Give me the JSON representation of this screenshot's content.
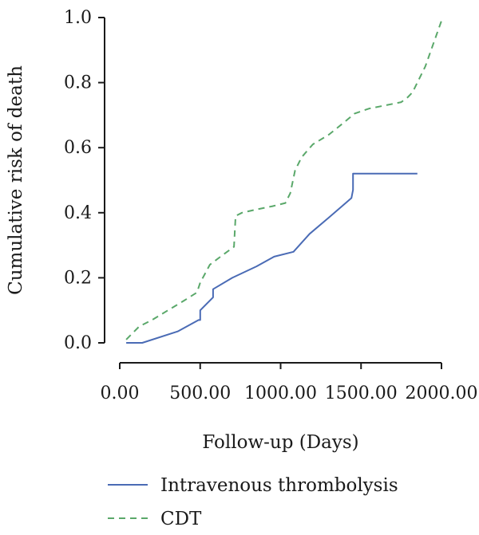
{
  "chart_data": {
    "type": "line",
    "xlabel": "Follow-up (Days)",
    "ylabel": "Cumulative risk of death",
    "xlim": [
      0,
      2000
    ],
    "ylim": [
      0,
      1.0
    ],
    "x_ticks": [
      0,
      500,
      1000,
      1500,
      2000
    ],
    "x_tick_labels": [
      "0.00",
      "500.00",
      "1000.00",
      "1500.00",
      "2000.00"
    ],
    "y_ticks": [
      0,
      0.2,
      0.4,
      0.6,
      0.8,
      1.0
    ],
    "y_tick_labels": [
      "0.0",
      "0.2",
      "0.4",
      "0.6",
      "0.8",
      "1.0"
    ],
    "grid": false,
    "legend_position": "bottom",
    "series": [
      {
        "name": "Intravenous thrombolysis",
        "color": "#4a6bb5",
        "line_style": "solid",
        "x": [
          40,
          140,
          360,
          490,
          500,
          500,
          580,
          580,
          700,
          850,
          960,
          1080,
          1180,
          1300,
          1440,
          1450,
          1450,
          1850
        ],
        "y": [
          0.0,
          0.0,
          0.035,
          0.07,
          0.07,
          0.1,
          0.14,
          0.165,
          0.2,
          0.235,
          0.265,
          0.28,
          0.335,
          0.385,
          0.445,
          0.47,
          0.52,
          0.52
        ]
      },
      {
        "name": "CDT",
        "color": "#5aa86a",
        "line_style": "dashed",
        "x": [
          40,
          120,
          200,
          300,
          400,
          480,
          500,
          560,
          640,
          710,
          720,
          760,
          850,
          950,
          1030,
          1060,
          1090,
          1130,
          1200,
          1300,
          1400,
          1460,
          1550,
          1650,
          1750,
          1790,
          1820,
          1860,
          1900,
          1950,
          2000
        ],
        "y": [
          0.01,
          0.05,
          0.07,
          0.1,
          0.13,
          0.155,
          0.185,
          0.24,
          0.27,
          0.295,
          0.39,
          0.4,
          0.41,
          0.42,
          0.43,
          0.46,
          0.53,
          0.57,
          0.61,
          0.64,
          0.68,
          0.705,
          0.72,
          0.73,
          0.74,
          0.755,
          0.77,
          0.81,
          0.85,
          0.92,
          0.99
        ]
      }
    ]
  }
}
